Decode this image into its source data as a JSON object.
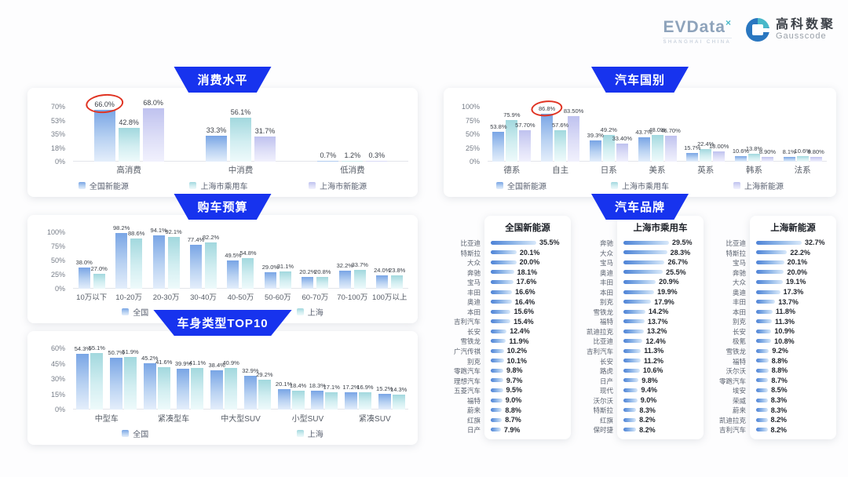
{
  "header": {
    "evdata": "EVData",
    "evdata_sup": "×",
    "evdata_sub": "SHANGHAI CHINA",
    "gausscode_cn": "高科数聚",
    "gausscode_en": "Gausscode"
  },
  "colors": {
    "badge_blue": "#1733ee",
    "series_national_blue": "#79a5e5",
    "series_shanghai_pv_teal": "#a2d8de",
    "series_shanghai_nev_purple": "#bfc2ef",
    "annotation_red": "#e03322",
    "brand_bar_blue": "#4d82d6"
  },
  "chart_data": [
    {
      "id": "consumption",
      "type": "bar",
      "title": "消费水平",
      "ylim": [
        0,
        70
      ],
      "yticks": [
        "70%",
        "53%",
        "35%",
        "18%",
        "0%"
      ],
      "grid": false,
      "legend_position": "bottom",
      "categories": [
        "高消费",
        "中消费",
        "低消费"
      ],
      "series": [
        {
          "name": "全国新能源",
          "values": [
            66.0,
            33.3,
            0.7
          ],
          "labels": [
            "66.0%",
            "33.3%",
            "0.7%"
          ]
        },
        {
          "name": "上海市乘用车",
          "values": [
            42.8,
            56.1,
            1.2
          ],
          "labels": [
            "42.8%",
            "56.1%",
            "1.2%"
          ]
        },
        {
          "name": "上海市新能源",
          "values": [
            68.0,
            31.7,
            0.3
          ],
          "labels": [
            "68.0%",
            "31.7%",
            "0.3%"
          ]
        }
      ],
      "annotation_circle": {
        "series": 0,
        "group": 0,
        "label": "66.0%"
      }
    },
    {
      "id": "budget",
      "type": "bar",
      "title": "购车预算",
      "ylim": [
        0,
        100
      ],
      "yticks": [
        "100%",
        "75%",
        "50%",
        "25%",
        "0%"
      ],
      "grid": false,
      "legend_position": "bottom",
      "categories": [
        "10万以下",
        "10-20万",
        "20-30万",
        "30-40万",
        "40-50万",
        "50-60万",
        "60-70万",
        "70-100万",
        "100万以上"
      ],
      "series": [
        {
          "name": "全国",
          "values": [
            38.0,
            98.2,
            94.1,
            77.4,
            49.5,
            29.0,
            20.2,
            32.2,
            24.0
          ],
          "labels": [
            "38.0%",
            "98.2%",
            "94.1%",
            "77.4%",
            "49.5%",
            "29.0%",
            "20.2%",
            "32.2%",
            "24.0%"
          ]
        },
        {
          "name": "上海",
          "values": [
            27.0,
            88.6,
            92.1,
            82.2,
            54.8,
            31.1,
            20.8,
            33.7,
            23.8
          ],
          "labels": [
            "27.0%",
            "88.6%",
            "92.1%",
            "82.2%",
            "54.8%",
            "31.1%",
            "20.8%",
            "33.7%",
            "23.8%"
          ]
        }
      ]
    },
    {
      "id": "body_type",
      "type": "bar",
      "title": "车身类型TOP10",
      "ylim": [
        0,
        60
      ],
      "yticks": [
        "60%",
        "45%",
        "30%",
        "15%",
        "0%"
      ],
      "grid": false,
      "legend_position": "bottom",
      "categories": [
        "中型车",
        "紧凑型车",
        "中大型SUV",
        "小型SUV",
        "紧凑SUV"
      ],
      "groups_per_category": 2,
      "series": [
        {
          "name": "全国",
          "values": [
            54.3,
            50.7,
            45.2,
            39.9,
            38.4,
            32.9,
            20.1,
            18.3,
            17.2,
            15.2
          ],
          "labels": [
            "54.3%",
            "50.7%",
            "45.2%",
            "39.9%",
            "38.4%",
            "32.9%",
            "20.1%",
            "18.3%",
            "17.2%",
            "15.2%"
          ]
        },
        {
          "name": "上海",
          "values": [
            55.1,
            51.9,
            41.6,
            41.1,
            40.9,
            29.2,
            18.4,
            17.1,
            16.9,
            14.3
          ],
          "labels": [
            "55.1%",
            "51.9%",
            "41.6%",
            "41.1%",
            "40.9%",
            "29.2%",
            "18.4%",
            "17.1%",
            "16.9%",
            "14.3%"
          ]
        }
      ]
    },
    {
      "id": "country",
      "type": "bar",
      "title": "汽车国别",
      "ylim": [
        0,
        100
      ],
      "yticks": [
        "100%",
        "75%",
        "50%",
        "25%",
        "0%"
      ],
      "grid": false,
      "legend_position": "bottom",
      "categories": [
        "德系",
        "自主",
        "日系",
        "美系",
        "英系",
        "韩系",
        "法系"
      ],
      "series": [
        {
          "name": "全国新能源",
          "values": [
            53.8,
            86.8,
            39.3,
            43.7,
            15.7,
            10.6,
            8.1
          ],
          "labels": [
            "53.8%",
            "86.8%",
            "39.3%",
            "43.7%",
            "15.7%",
            "10.6%",
            "8.1%"
          ]
        },
        {
          "name": "上海市乘用车",
          "values": [
            75.9,
            57.6,
            49.2,
            48.0,
            22.4,
            13.8,
            10.6
          ],
          "labels": [
            "75.9%",
            "57.6%",
            "49.2%",
            "48.0%",
            "22.4%",
            "13.8%",
            "10.6%"
          ]
        },
        {
          "name": "上海新能源",
          "values": [
            57.7,
            83.5,
            33.4,
            46.7,
            18.0,
            8.9,
            8.8
          ],
          "labels": [
            "57.70%",
            "83.50%",
            "33.40%",
            "46.70%",
            "18.00%",
            "8.90%",
            "8.80%"
          ]
        }
      ],
      "annotation_circle": {
        "series": 0,
        "group": 1,
        "label": "86.8%"
      }
    },
    {
      "id": "brands",
      "type": "bar",
      "orientation": "horizontal",
      "title": "汽车品牌",
      "value_suffix": "%",
      "columns": [
        {
          "title": "全国新能源",
          "items": [
            [
              "比亚迪",
              35.5
            ],
            [
              "特斯拉",
              20.1
            ],
            [
              "大众",
              20.0
            ],
            [
              "奔驰",
              18.1
            ],
            [
              "宝马",
              17.6
            ],
            [
              "丰田",
              16.6
            ],
            [
              "奥迪",
              16.4
            ],
            [
              "本田",
              15.6
            ],
            [
              "吉利汽车",
              15.4
            ],
            [
              "长安",
              12.4
            ],
            [
              "雪铁龙",
              11.9
            ],
            [
              "广汽传祺",
              10.2
            ],
            [
              "别克",
              10.1
            ],
            [
              "零跑汽车",
              9.8
            ],
            [
              "理想汽车",
              9.7
            ],
            [
              "五菱汽车",
              9.5
            ],
            [
              "福特",
              9.0
            ],
            [
              "蔚来",
              8.8
            ],
            [
              "红旗",
              8.7
            ],
            [
              "日产",
              7.9
            ]
          ]
        },
        {
          "title": "上海市乘用车",
          "items": [
            [
              "奔驰",
              29.5
            ],
            [
              "大众",
              28.3
            ],
            [
              "宝马",
              26.7
            ],
            [
              "奥迪",
              25.5
            ],
            [
              "丰田",
              20.9
            ],
            [
              "本田",
              19.9
            ],
            [
              "别克",
              17.9
            ],
            [
              "雪铁龙",
              14.2
            ],
            [
              "福特",
              13.7
            ],
            [
              "凯迪拉克",
              13.2
            ],
            [
              "比亚迪",
              12.4
            ],
            [
              "吉利汽车",
              11.3
            ],
            [
              "长安",
              11.2
            ],
            [
              "路虎",
              10.6
            ],
            [
              "日产",
              9.8
            ],
            [
              "现代",
              9.4
            ],
            [
              "沃尔沃",
              9.0
            ],
            [
              "特斯拉",
              8.3
            ],
            [
              "红旗",
              8.2
            ],
            [
              "保时捷",
              8.2
            ]
          ]
        },
        {
          "title": "上海新能源",
          "items": [
            [
              "比亚迪",
              32.7
            ],
            [
              "特斯拉",
              22.2
            ],
            [
              "宝马",
              20.1
            ],
            [
              "奔驰",
              20.0
            ],
            [
              "大众",
              19.1
            ],
            [
              "奥迪",
              17.3
            ],
            [
              "丰田",
              13.7
            ],
            [
              "本田",
              11.8
            ],
            [
              "别克",
              11.3
            ],
            [
              "长安",
              10.9
            ],
            [
              "极氪",
              10.8
            ],
            [
              "雪铁龙",
              9.2
            ],
            [
              "福特",
              8.8
            ],
            [
              "沃尔沃",
              8.8
            ],
            [
              "零跑汽车",
              8.7
            ],
            [
              "埃安",
              8.5
            ],
            [
              "荣威",
              8.3
            ],
            [
              "蔚来",
              8.3
            ],
            [
              "凯迪拉克",
              8.2
            ],
            [
              "吉利汽车",
              8.2
            ]
          ]
        }
      ]
    }
  ]
}
